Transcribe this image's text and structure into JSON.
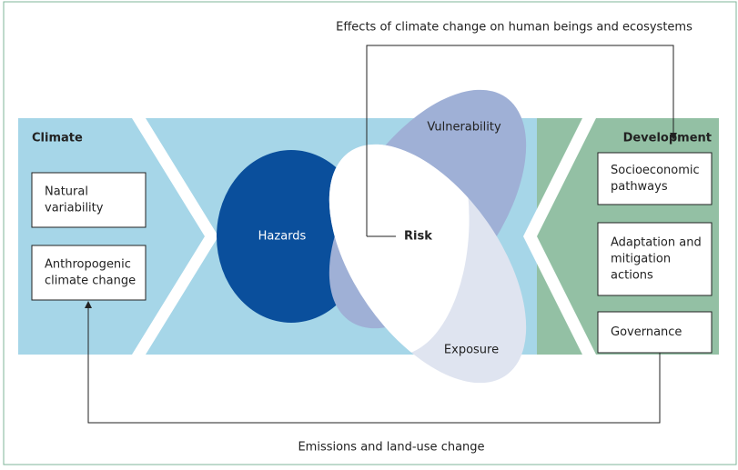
{
  "title": "Effects of climate change on human beings and ecosystems",
  "footer": "Emissions and land-use change",
  "climate": {
    "label": "Climate",
    "boxes": [
      [
        "Natural",
        "variability"
      ],
      [
        "Anthropogenic",
        "climate change"
      ]
    ]
  },
  "development": {
    "label": "Development",
    "boxes": [
      [
        "Socioeconomic",
        "pathways"
      ],
      [
        "Adaptation and",
        "mitigation",
        "actions"
      ],
      [
        "Governance"
      ]
    ]
  },
  "hazards": "Hazards",
  "vulnerability": "Vulnerability",
  "exposure": "Exposure",
  "risk": "Risk"
}
